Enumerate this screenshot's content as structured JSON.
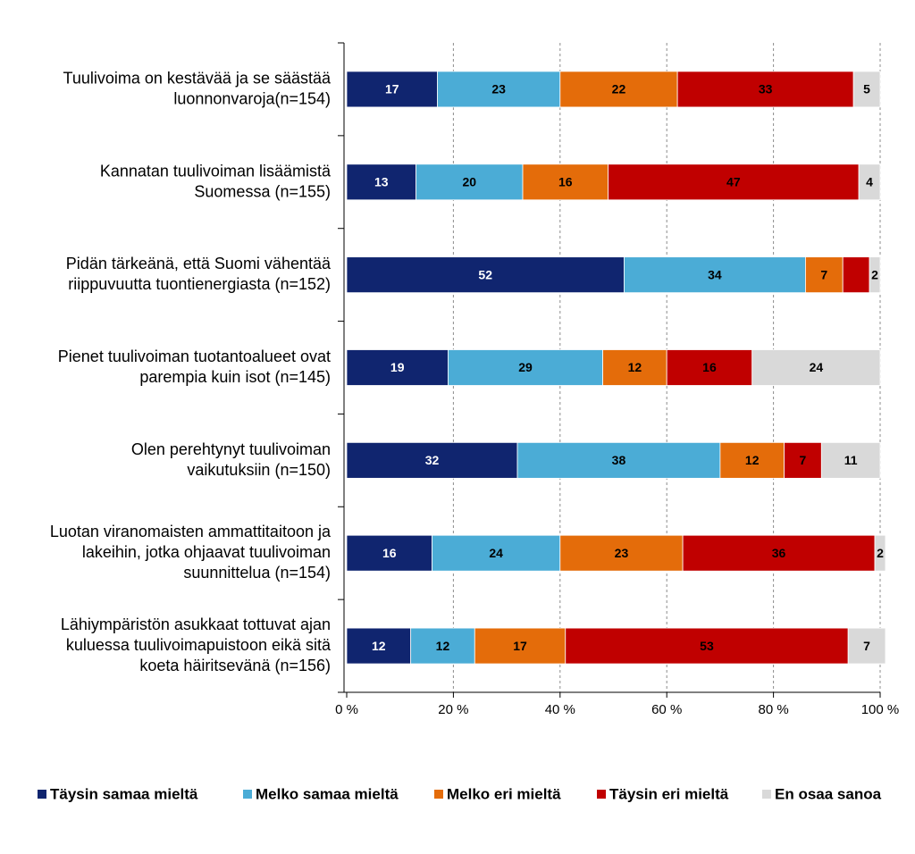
{
  "chart_data": {
    "type": "stacked-bar-horizontal",
    "categories": [
      [
        "Tuulivoima on kestävää ja se säästää",
        "luonnonvaroja(n=154)"
      ],
      [
        "Kannatan tuulivoiman lisäämistä",
        "Suomessa  (n=155)"
      ],
      [
        "Pidän tärkeänä, että Suomi vähentää",
        "riippuvuutta tuontienergiasta  (n=152)"
      ],
      [
        "Pienet tuulivoiman tuotantoalueet ovat",
        "parempia kuin isot  (n=145)"
      ],
      [
        "Olen perehtynyt tuulivoiman",
        "vaikutuksiin  (n=150)"
      ],
      [
        "Luotan viranomaisten ammattitaitoon ja",
        "lakeihin, jotka ohjaavat tuulivoiman",
        "suunnittelua (n=154)"
      ],
      [
        "Lähiympäristön asukkaat tottuvat ajan",
        "kuluessa tuulivoimapuistoon eikä sitä",
        "koeta häiritsevänä (n=156)"
      ]
    ],
    "series": [
      {
        "name": "Täysin samaa mieltä",
        "color": "#10256f",
        "label_color": "#ffffff",
        "values": [
          17,
          13,
          52,
          19,
          32,
          16,
          12
        ]
      },
      {
        "name": "Melko samaa mieltä",
        "color": "#4bacd6",
        "label_color": "#000000",
        "values": [
          23,
          20,
          34,
          29,
          38,
          24,
          12
        ]
      },
      {
        "name": "Melko eri mieltä",
        "color": "#e46c0a",
        "label_color": "#000000",
        "values": [
          22,
          16,
          7,
          12,
          12,
          23,
          17
        ]
      },
      {
        "name": "Täysin eri mieltä",
        "color": "#c00000",
        "label_color": "#000000",
        "values": [
          33,
          47,
          5,
          16,
          7,
          36,
          53
        ],
        "value_labels": [
          "33",
          "47",
          null,
          "16",
          "7",
          "36",
          "53"
        ]
      },
      {
        "name": "En osaa sanoa",
        "color": "#d9d9d9",
        "label_color": "#000000",
        "values": [
          5,
          4,
          2,
          24,
          11,
          2,
          7
        ]
      }
    ],
    "xlim": [
      0,
      100
    ],
    "xticks": [
      {
        "value": 0,
        "label": "0 %"
      },
      {
        "value": 20,
        "label": "20 %"
      },
      {
        "value": 40,
        "label": "40 %"
      },
      {
        "value": 60,
        "label": "60 %"
      },
      {
        "value": 80,
        "label": "80 %"
      },
      {
        "value": 100,
        "label": "100 %"
      }
    ],
    "grid": true,
    "legend": "bottom"
  }
}
